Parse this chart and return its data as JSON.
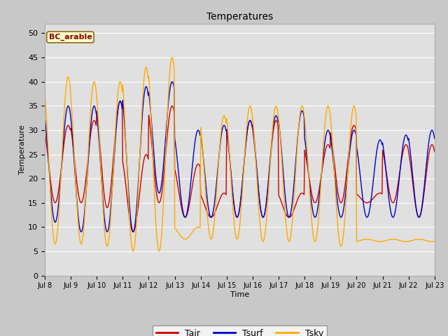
{
  "title": "Temperatures",
  "xlabel": "Time",
  "ylabel": "Temperature",
  "ylim": [
    0,
    52
  ],
  "yticks": [
    0,
    5,
    10,
    15,
    20,
    25,
    30,
    35,
    40,
    45,
    50
  ],
  "label_annotation": "BC_arable",
  "fig_bg_color": "#c8c8c8",
  "plot_bg_color": "#e0e0e0",
  "line_colors": {
    "Tair": "#cc0000",
    "Tsurf": "#0000cc",
    "Tsky": "#ffaa00"
  },
  "n_days": 15,
  "pts_per_day": 48,
  "x_tick_labels": [
    "Jul 8",
    "Jul 9",
    "Jul 10",
    "Jul 11",
    "Jul 12",
    "Jul 13",
    "Jul 14",
    "Jul 15",
    "Jul 16",
    "Jul 17",
    "Jul 18",
    "Jul 19",
    "Jul 20",
    "Jul 21",
    "Jul 22",
    "Jul 23"
  ],
  "daily_max_air": [
    31,
    32,
    36,
    25,
    35,
    23,
    17,
    32,
    32,
    17,
    27,
    31,
    17,
    27,
    27
  ],
  "daily_min_air": [
    15,
    15,
    14,
    9,
    15,
    12,
    12,
    12,
    12,
    12,
    15,
    15,
    15,
    15,
    12
  ],
  "daily_max_surf": [
    35,
    35,
    36,
    39,
    40,
    30,
    31,
    32,
    33,
    34,
    30,
    30,
    28,
    29,
    30
  ],
  "daily_min_surf": [
    11,
    9,
    9,
    9,
    17,
    12,
    12,
    12,
    12,
    12,
    12,
    12,
    12,
    12,
    12
  ],
  "daily_max_sky": [
    41,
    40,
    40,
    43,
    45,
    10,
    33,
    35,
    35,
    35,
    35,
    35,
    7,
    7,
    7
  ],
  "daily_min_sky": [
    6.5,
    6.5,
    6,
    5,
    5,
    7.5,
    7.5,
    7.5,
    7,
    7,
    7,
    6,
    7.5,
    7.5,
    7.5
  ]
}
